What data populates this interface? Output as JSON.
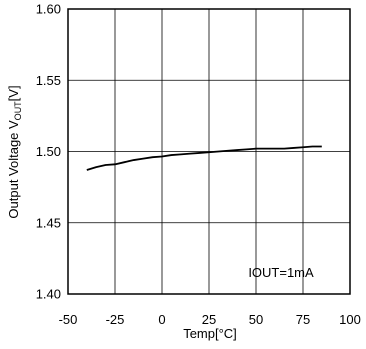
{
  "chart_data": {
    "type": "line",
    "title": "",
    "xlabel": "Temp[°C]",
    "ylabel_prefix": "Output Voltage V",
    "ylabel_sub": "OUT",
    "ylabel_suffix": "[V]",
    "xlim": [
      -50,
      100
    ],
    "ylim": [
      1.4,
      1.6
    ],
    "x_ticks": [
      -50,
      -25,
      0,
      25,
      50,
      75,
      100
    ],
    "x_tick_labels": [
      "-50",
      "-25",
      "0",
      "25",
      "50",
      "75",
      "100"
    ],
    "y_ticks": [
      1.4,
      1.45,
      1.5,
      1.55,
      1.6
    ],
    "y_tick_labels": [
      "1.40",
      "1.45",
      "1.50",
      "1.55",
      "1.60"
    ],
    "grid": true,
    "annotation": "IOUT=1mA",
    "series": [
      {
        "x": [
          -40,
          -35,
          -30,
          -25,
          -20,
          -15,
          -10,
          -5,
          0,
          5,
          10,
          15,
          20,
          25,
          30,
          35,
          40,
          45,
          50,
          55,
          60,
          65,
          70,
          75,
          80,
          85
        ],
        "y": [
          1.487,
          1.489,
          1.4905,
          1.491,
          1.4925,
          1.494,
          1.495,
          1.496,
          1.4965,
          1.4975,
          1.498,
          1.4985,
          1.499,
          1.4995,
          1.5,
          1.5005,
          1.501,
          1.5015,
          1.502,
          1.502,
          1.502,
          1.502,
          1.5025,
          1.503,
          1.5035,
          1.5035
        ]
      }
    ],
    "colors": {
      "line": "#000000",
      "grid": "#000000",
      "frame": "#000000"
    }
  }
}
